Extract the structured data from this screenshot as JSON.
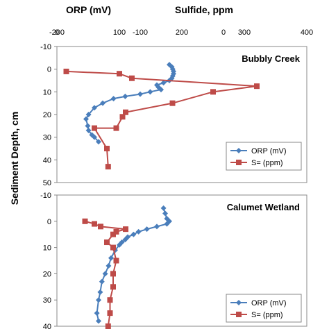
{
  "chart_data": [
    {
      "type": "line",
      "panel_title": "Bubbly Creek",
      "ylabel": "Sediment Depth, cm",
      "ylim": [
        -10,
        50
      ],
      "yticks": [
        -10,
        0,
        10,
        20,
        30,
        40,
        50
      ],
      "y_inverted": true,
      "top_axes": [
        {
          "title": "ORP (mV)",
          "range": [
            -200,
            100
          ],
          "ticks": [
            -200,
            -100,
            0
          ]
        },
        {
          "title": "Sulfide, ppm",
          "range": [
            0,
            400
          ],
          "ticks": [
            0,
            100,
            200,
            300,
            400
          ]
        }
      ],
      "legend_position": "bottom-right",
      "series": [
        {
          "name": "ORP (mV)",
          "axis": 0,
          "color": "#4a7ebb",
          "marker": "diamond",
          "points": [
            [
              -65,
              -2
            ],
            [
              -62,
              -1
            ],
            [
              -61,
              0
            ],
            [
              -60,
              1
            ],
            [
              -60,
              2
            ],
            [
              -61,
              3
            ],
            [
              -62,
              4
            ],
            [
              -65,
              5
            ],
            [
              -72,
              6
            ],
            [
              -80,
              7
            ],
            [
              -78,
              8
            ],
            [
              -75,
              9
            ],
            [
              -88,
              10
            ],
            [
              -100,
              11
            ],
            [
              -118,
              12
            ],
            [
              -132,
              13
            ],
            [
              -145,
              15
            ],
            [
              -155,
              17
            ],
            [
              -162,
              20
            ],
            [
              -165,
              22
            ],
            [
              -163,
              25
            ],
            [
              -162,
              27
            ],
            [
              -158,
              29
            ],
            [
              -155,
              30
            ],
            [
              -150,
              32
            ]
          ]
        },
        {
          "name": "S= (ppm)",
          "axis": 1,
          "color": "#be4b48",
          "marker": "square",
          "points": [
            [
              15,
              1
            ],
            [
              100,
              2
            ],
            [
              120,
              4
            ],
            [
              320,
              7.5
            ],
            [
              250,
              10
            ],
            [
              185,
              15
            ],
            [
              110,
              19
            ],
            [
              105,
              21
            ],
            [
              95,
              26
            ],
            [
              60,
              26
            ],
            [
              80,
              35
            ],
            [
              82,
              43
            ]
          ]
        }
      ]
    },
    {
      "type": "line",
      "panel_title": "Calumet Wetland",
      "ylim": [
        -10,
        40
      ],
      "yticks": [
        -10,
        0,
        10,
        20,
        30,
        40
      ],
      "y_inverted": true,
      "legend_position": "bottom-right",
      "series": [
        {
          "name": "ORP (mV)",
          "axis": 0,
          "color": "#4a7ebb",
          "marker": "diamond",
          "points": [
            [
              -72,
              -5
            ],
            [
              -70,
              -3
            ],
            [
              -68,
              -1
            ],
            [
              -65,
              0
            ],
            [
              -68,
              1
            ],
            [
              -80,
              2
            ],
            [
              -92,
              3
            ],
            [
              -102,
              4
            ],
            [
              -108,
              5
            ],
            [
              -115,
              6
            ],
            [
              -118,
              7
            ],
            [
              -122,
              8
            ],
            [
              -125,
              9
            ],
            [
              -130,
              11
            ],
            [
              -135,
              14
            ],
            [
              -138,
              17
            ],
            [
              -142,
              20
            ],
            [
              -146,
              23
            ],
            [
              -148,
              27
            ],
            [
              -150,
              30
            ],
            [
              -152,
              35
            ],
            [
              -150,
              38
            ]
          ]
        },
        {
          "name": "S= (ppm)",
          "axis": 1,
          "color": "#be4b48",
          "marker": "square",
          "points": [
            [
              45,
              0
            ],
            [
              60,
              1
            ],
            [
              70,
              2
            ],
            [
              110,
              3
            ],
            [
              95,
              4
            ],
            [
              90,
              5
            ],
            [
              80,
              8
            ],
            [
              90,
              10
            ],
            [
              95,
              15
            ],
            [
              90,
              20
            ],
            [
              90,
              25
            ],
            [
              85,
              30
            ],
            [
              85,
              35
            ],
            [
              82,
              40
            ]
          ]
        }
      ]
    }
  ]
}
